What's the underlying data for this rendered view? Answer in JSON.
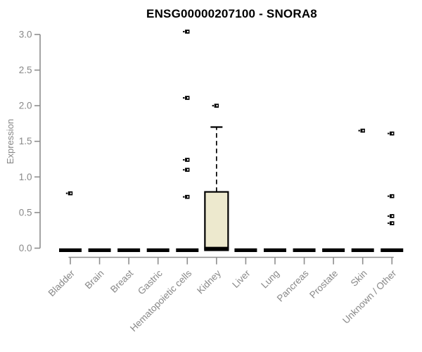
{
  "chart_data": {
    "type": "boxplot",
    "title": "ENSG00000207100 - SNORA8",
    "ylabel": "Expression",
    "xlabel": "",
    "ylim": [
      0,
      3
    ],
    "grid": false,
    "legend": "none",
    "ytick_values": [
      0,
      0.5,
      1,
      1.5,
      2,
      2.5,
      3
    ],
    "ytick_labels": [
      "0.0",
      "0.5",
      "1.0",
      "1.5",
      "2.0",
      "2.5",
      "3.0"
    ],
    "categories": [
      "Bladder",
      "Brain",
      "Breast",
      "Gastric",
      "Hematopoietic cells",
      "Kidney",
      "Liver",
      "Lung",
      "Pancreas",
      "Prostate",
      "Skin",
      "Unknown / Other"
    ],
    "boxes": [
      {
        "category": "Bladder",
        "q1": 0,
        "median": 0,
        "q3": 0.02,
        "whisker_low": 0,
        "whisker_high": 0.02,
        "outliers": [
          0.77
        ]
      },
      {
        "category": "Brain",
        "q1": 0,
        "median": 0,
        "q3": 0.02,
        "whisker_low": 0,
        "whisker_high": 0.02,
        "outliers": []
      },
      {
        "category": "Breast",
        "q1": 0,
        "median": 0,
        "q3": 0.02,
        "whisker_low": 0,
        "whisker_high": 0.02,
        "outliers": []
      },
      {
        "category": "Gastric",
        "q1": 0,
        "median": 0,
        "q3": 0.02,
        "whisker_low": 0,
        "whisker_high": 0.02,
        "outliers": []
      },
      {
        "category": "Hematopoietic cells",
        "q1": 0,
        "median": 0,
        "q3": 0.02,
        "whisker_low": 0,
        "whisker_high": 0.02,
        "outliers": [
          3.04,
          2.11,
          1.24,
          1.1,
          0.72
        ]
      },
      {
        "category": "Kidney",
        "q1": 0,
        "median": 0.02,
        "q3": 0.79,
        "whisker_low": 0,
        "whisker_high": 1.7,
        "outliers": [
          2.0
        ]
      },
      {
        "category": "Liver",
        "q1": 0,
        "median": 0,
        "q3": 0.02,
        "whisker_low": 0,
        "whisker_high": 0.02,
        "outliers": []
      },
      {
        "category": "Lung",
        "q1": 0,
        "median": 0,
        "q3": 0.02,
        "whisker_low": 0,
        "whisker_high": 0.02,
        "outliers": []
      },
      {
        "category": "Pancreas",
        "q1": 0,
        "median": 0,
        "q3": 0.02,
        "whisker_low": 0,
        "whisker_high": 0.02,
        "outliers": []
      },
      {
        "category": "Prostate",
        "q1": 0,
        "median": 0,
        "q3": 0.02,
        "whisker_low": 0,
        "whisker_high": 0.02,
        "outliers": []
      },
      {
        "category": "Skin",
        "q1": 0,
        "median": 0,
        "q3": 0.02,
        "whisker_low": 0,
        "whisker_high": 0.02,
        "outliers": [
          1.65
        ]
      },
      {
        "category": "Unknown / Other",
        "q1": 0,
        "median": 0,
        "q3": 0.02,
        "whisker_low": 0,
        "whisker_high": 0.02,
        "outliers": [
          1.61,
          0.73,
          0.45,
          0.35
        ]
      }
    ],
    "colors": {
      "box_fill": "#EDE9CE",
      "box_border": "#000000",
      "zero_bar": "#000000",
      "axis_line": "#8E8E8E",
      "tick_label": "#888888",
      "title": "#000000",
      "outlier": "#000000",
      "background": "#FFFFFF"
    }
  }
}
